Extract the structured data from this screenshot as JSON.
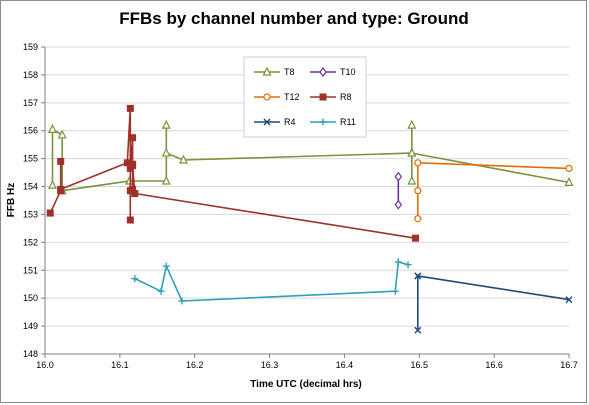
{
  "chart_data": {
    "type": "line",
    "title": "FFBs by channel number and type: Ground",
    "xlabel": "Time UTC (decimal hrs)",
    "ylabel": "FFB Hz",
    "xlim": [
      16.0,
      16.7
    ],
    "ylim": [
      148,
      159
    ],
    "xticks": [
      "16.0",
      "16.1",
      "16.2",
      "16.3",
      "16.4",
      "16.5",
      "16.6",
      "16.7"
    ],
    "yticks": [
      "148",
      "149",
      "150",
      "151",
      "152",
      "153",
      "154",
      "155",
      "156",
      "157",
      "158",
      "159"
    ],
    "grid": "horizontal",
    "legend_position": "top-center",
    "series": [
      {
        "name": "T8",
        "color": "#77933c",
        "marker": "triangle",
        "points": [
          [
            16.01,
            156.05
          ],
          [
            16.01,
            154.05
          ],
          [
            16.01,
            156.05
          ],
          [
            16.023,
            155.85
          ],
          [
            16.023,
            153.85
          ],
          [
            16.113,
            154.2
          ],
          [
            16.162,
            154.2
          ],
          [
            16.162,
            156.2
          ],
          [
            16.162,
            155.2
          ],
          [
            16.185,
            154.95
          ],
          [
            16.49,
            155.2
          ],
          [
            16.49,
            156.2
          ],
          [
            16.49,
            154.2
          ],
          [
            16.49,
            155.2
          ],
          [
            16.7,
            154.15
          ]
        ]
      },
      {
        "name": "T10",
        "color": "#7030a0",
        "marker": "diamond",
        "points": [
          [
            16.472,
            154.35
          ],
          [
            16.472,
            153.35
          ]
        ]
      },
      {
        "name": "T12",
        "color": "#e46c0a",
        "marker": "circle",
        "points": [
          [
            16.498,
            152.85
          ],
          [
            16.498,
            153.85
          ],
          [
            16.498,
            154.85
          ],
          [
            16.7,
            154.65
          ]
        ]
      },
      {
        "name": "R8",
        "color": "#a0302a",
        "marker": "square",
        "points": [
          [
            16.007,
            153.05
          ],
          [
            16.021,
            153.85
          ],
          [
            16.021,
            154.9
          ],
          [
            16.021,
            153.9
          ],
          [
            16.11,
            154.85
          ],
          [
            16.114,
            156.8
          ],
          [
            16.114,
            153.85
          ],
          [
            16.114,
            152.8
          ],
          [
            16.114,
            154.65
          ],
          [
            16.117,
            155.75
          ],
          [
            16.117,
            154.8
          ],
          [
            16.117,
            153.9
          ],
          [
            16.117,
            154.75
          ],
          [
            16.12,
            153.75
          ],
          [
            16.495,
            152.15
          ]
        ]
      },
      {
        "name": "R4",
        "color": "#1f497d",
        "marker": "cross",
        "points": [
          [
            16.498,
            150.8
          ],
          [
            16.498,
            148.85
          ],
          [
            16.498,
            150.8
          ],
          [
            16.7,
            149.95
          ]
        ]
      },
      {
        "name": "R11",
        "color": "#31a0b8",
        "marker": "plus",
        "points": [
          [
            16.12,
            150.7
          ],
          [
            16.155,
            150.25
          ],
          [
            16.162,
            151.15
          ],
          [
            16.183,
            149.9
          ],
          [
            16.468,
            150.25
          ],
          [
            16.472,
            151.3
          ],
          [
            16.485,
            151.2
          ]
        ]
      }
    ]
  }
}
